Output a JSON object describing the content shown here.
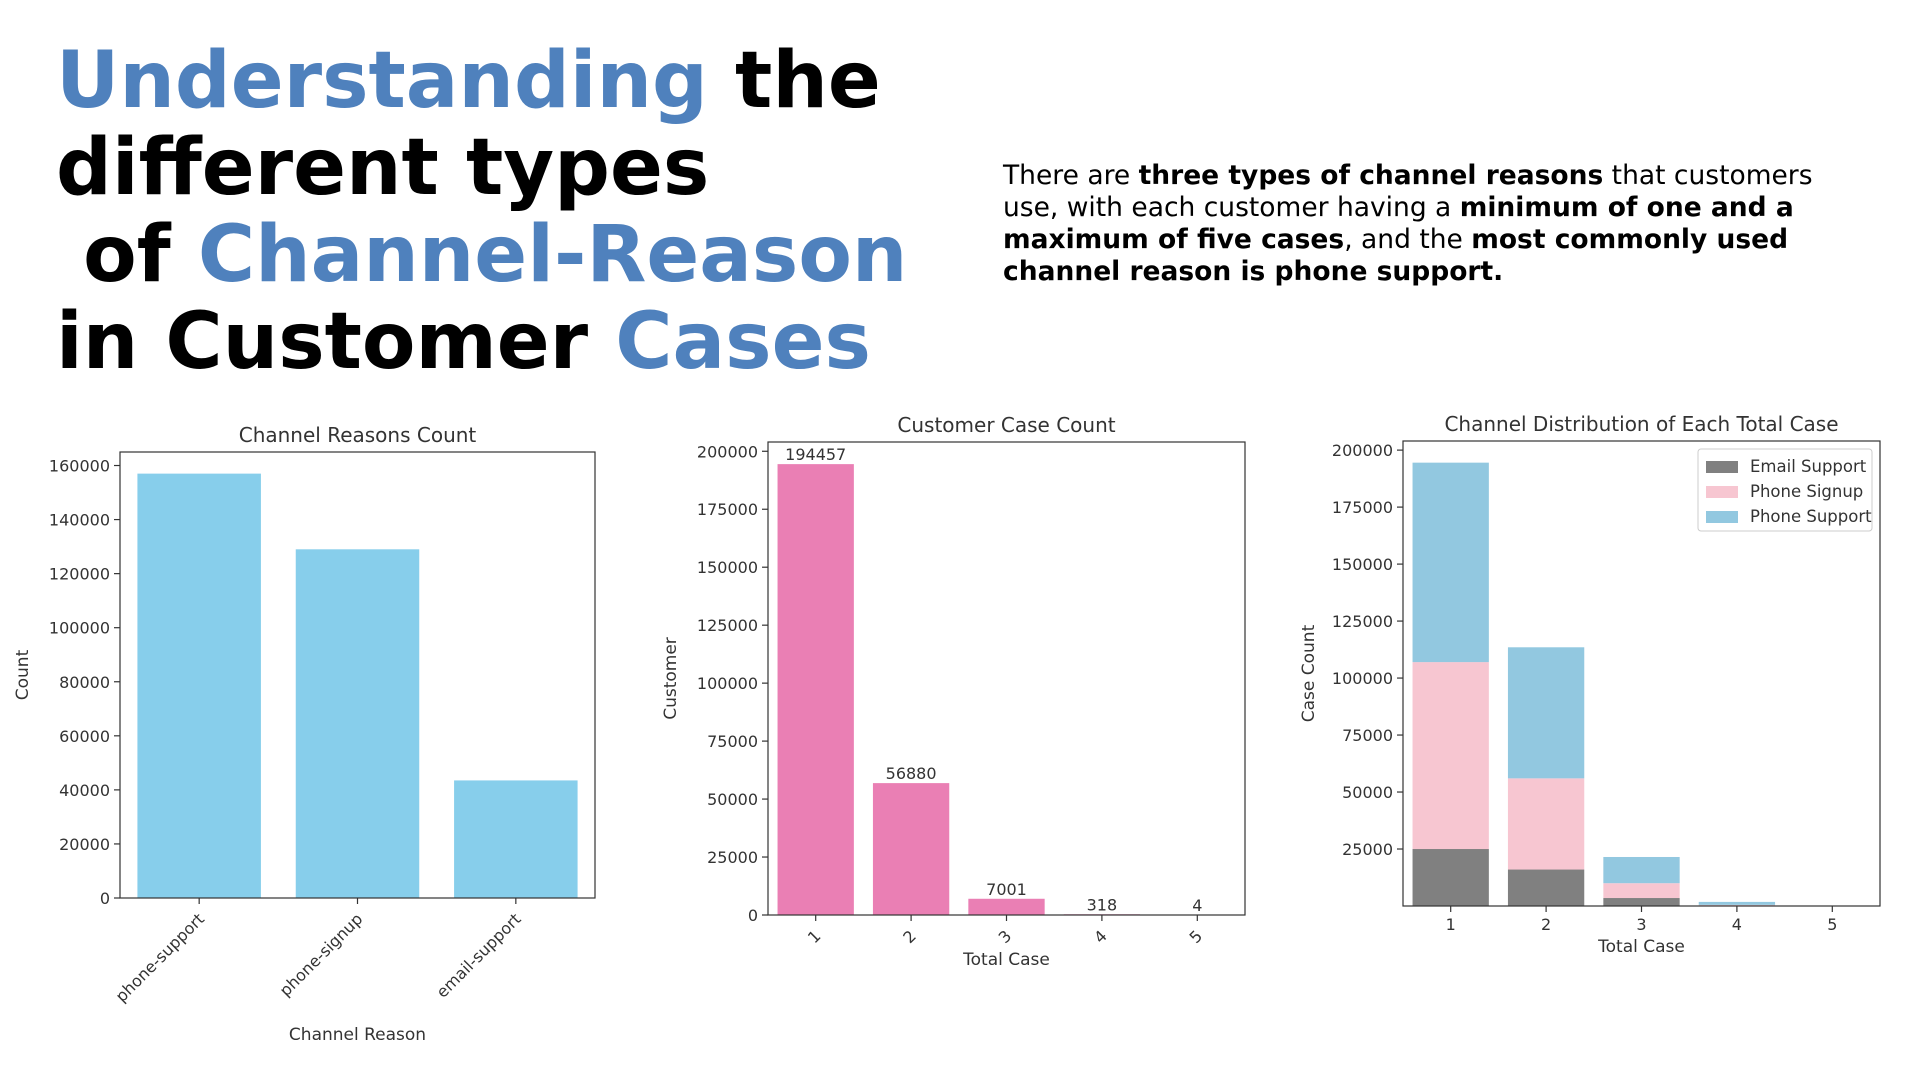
{
  "title": {
    "line1_hl": "Understanding",
    "line1_rest": " the",
    "line2": "different types",
    "line3_pre": " of ",
    "line3_hl": "Channel-Reason",
    "line4_pre": "in Customer ",
    "line4_hl": "Cases"
  },
  "summary": {
    "p1": "There are ",
    "b1": "three types of channel reasons",
    "p2": " that customers use, with each customer having a ",
    "b2": "minimum of one and a maximum of five cases",
    "p3": ", and the ",
    "b3": "most commonly used channel reason is phone support."
  },
  "colors": {
    "title_highlight": "#4f81bd",
    "bar_blue": "#87ceeb",
    "bar_pink": "#ea7fb4",
    "email_support": "#808080",
    "phone_signup": "#f7c6d1",
    "phone_support": "#92c8e0"
  },
  "chart_data": [
    {
      "type": "bar",
      "title": "Channel Reasons Count",
      "xlabel": "Channel Reason",
      "ylabel": "Count",
      "categories": [
        "phone-support",
        "phone-signup",
        "email-support"
      ],
      "values": [
        157000,
        129000,
        43500
      ],
      "ylim": [
        0,
        165000
      ],
      "yticks": [
        0,
        20000,
        40000,
        60000,
        80000,
        100000,
        120000,
        140000,
        160000
      ],
      "grid": false
    },
    {
      "type": "bar",
      "title": "Customer Case Count",
      "xlabel": "Total Case",
      "ylabel": "Customer",
      "categories": [
        "1",
        "2",
        "3",
        "4",
        "5"
      ],
      "values": [
        194457,
        56880,
        7001,
        318,
        4
      ],
      "data_labels": [
        "194457",
        "56880",
        "7001",
        "318",
        "4"
      ],
      "ylim": [
        0,
        204000
      ],
      "yticks": [
        0,
        25000,
        50000,
        75000,
        100000,
        125000,
        150000,
        175000,
        200000
      ],
      "grid": false
    },
    {
      "type": "bar",
      "stacked": true,
      "title": "Channel Distribution of Each Total Case",
      "xlabel": "Total Case",
      "ylabel": "Case Count",
      "categories": [
        "1",
        "2",
        "3",
        "4",
        "5"
      ],
      "series": [
        {
          "name": "Email Support",
          "values": [
            25000,
            16000,
            3500,
            300,
            0
          ]
        },
        {
          "name": "Phone Signup",
          "values": [
            82000,
            40000,
            6500,
            200,
            0
          ]
        },
        {
          "name": "Phone Support",
          "values": [
            87500,
            57500,
            11500,
            1300,
            20
          ]
        }
      ],
      "ylim": [
        0,
        204000
      ],
      "yticks": [
        25000,
        50000,
        75000,
        100000,
        125000,
        150000,
        175000,
        200000
      ],
      "legend": "top-right",
      "grid": false
    }
  ]
}
